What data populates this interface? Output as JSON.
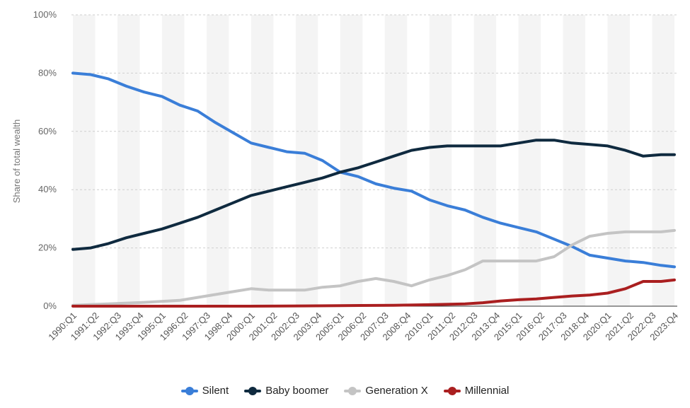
{
  "chart_data": {
    "type": "line",
    "ylabel": "Share of total wealth",
    "xlabel": "",
    "ylim": [
      0,
      100
    ],
    "y_ticks": [
      "0%",
      "20%",
      "40%",
      "60%",
      "80%",
      "100%"
    ],
    "grid": "horizontal dashed, alternating shaded bands",
    "legend_position": "bottom",
    "x_tick_labels": [
      "1990:Q1",
      "1991:Q2",
      "1992:Q3",
      "1993:Q4",
      "1995:Q1",
      "1996:Q2",
      "1997:Q3",
      "1998:Q4",
      "2000:Q1",
      "2001:Q2",
      "2002:Q3",
      "2003:Q4",
      "2005:Q1",
      "2006:Q2",
      "2007:Q3",
      "2008:Q4",
      "2010:Q1",
      "2011:Q2",
      "2012:Q3",
      "2013:Q4",
      "2015:Q1",
      "2016:Q2",
      "2017:Q3",
      "2018:Q4",
      "2020:Q1",
      "2021:Q2",
      "2022:Q3",
      "2023:Q4"
    ],
    "x_start": "1990:Q1",
    "x_end": "2023:Q4",
    "series": [
      {
        "name": "Silent",
        "color": "#3a7ed8",
        "points": [
          [
            "1990:Q1",
            80
          ],
          [
            "1991:Q1",
            79.5
          ],
          [
            "1992:Q1",
            78
          ],
          [
            "1993:Q1",
            75.5
          ],
          [
            "1994:Q1",
            73.5
          ],
          [
            "1995:Q1",
            72
          ],
          [
            "1996:Q1",
            69
          ],
          [
            "1997:Q1",
            67
          ],
          [
            "1998:Q1",
            63
          ],
          [
            "1999:Q1",
            59.5
          ],
          [
            "2000:Q1",
            56
          ],
          [
            "2001:Q1",
            54.5
          ],
          [
            "2002:Q1",
            53
          ],
          [
            "2003:Q1",
            52.5
          ],
          [
            "2004:Q1",
            50
          ],
          [
            "2005:Q1",
            46
          ],
          [
            "2006:Q1",
            44.5
          ],
          [
            "2007:Q1",
            42
          ],
          [
            "2008:Q1",
            40.5
          ],
          [
            "2009:Q1",
            39.5
          ],
          [
            "2010:Q1",
            36.5
          ],
          [
            "2011:Q1",
            34.5
          ],
          [
            "2012:Q1",
            33
          ],
          [
            "2013:Q1",
            30.5
          ],
          [
            "2014:Q1",
            28.5
          ],
          [
            "2015:Q1",
            27
          ],
          [
            "2016:Q1",
            25.5
          ],
          [
            "2017:Q1",
            23
          ],
          [
            "2018:Q1",
            20.5
          ],
          [
            "2019:Q1",
            17.5
          ],
          [
            "2020:Q1",
            16.5
          ],
          [
            "2021:Q1",
            15.5
          ],
          [
            "2022:Q1",
            15
          ],
          [
            "2023:Q1",
            14
          ],
          [
            "2023:Q4",
            13.5
          ]
        ]
      },
      {
        "name": "Baby boomer",
        "color": "#0f2a3f",
        "points": [
          [
            "1990:Q1",
            19.5
          ],
          [
            "1991:Q1",
            20
          ],
          [
            "1992:Q1",
            21.5
          ],
          [
            "1993:Q1",
            23.5
          ],
          [
            "1994:Q1",
            25
          ],
          [
            "1995:Q1",
            26.5
          ],
          [
            "1996:Q1",
            28.5
          ],
          [
            "1997:Q1",
            30.5
          ],
          [
            "1998:Q1",
            33
          ],
          [
            "1999:Q1",
            35.5
          ],
          [
            "2000:Q1",
            38
          ],
          [
            "2001:Q1",
            39.5
          ],
          [
            "2002:Q1",
            41
          ],
          [
            "2003:Q1",
            42.5
          ],
          [
            "2004:Q1",
            44
          ],
          [
            "2005:Q1",
            46
          ],
          [
            "2006:Q1",
            47.5
          ],
          [
            "2007:Q1",
            49.5
          ],
          [
            "2008:Q1",
            51.5
          ],
          [
            "2009:Q1",
            53.5
          ],
          [
            "2010:Q1",
            54.5
          ],
          [
            "2011:Q1",
            55
          ],
          [
            "2012:Q1",
            55
          ],
          [
            "2013:Q1",
            55
          ],
          [
            "2014:Q1",
            55
          ],
          [
            "2015:Q1",
            56
          ],
          [
            "2016:Q1",
            57
          ],
          [
            "2017:Q1",
            57
          ],
          [
            "2018:Q1",
            56
          ],
          [
            "2019:Q1",
            55.5
          ],
          [
            "2020:Q1",
            55
          ],
          [
            "2021:Q1",
            53.5
          ],
          [
            "2022:Q1",
            51.5
          ],
          [
            "2023:Q1",
            52
          ],
          [
            "2023:Q4",
            52
          ]
        ]
      },
      {
        "name": "Generation X",
        "color": "#c4c4c4",
        "points": [
          [
            "1990:Q1",
            0.3
          ],
          [
            "1992:Q1",
            0.8
          ],
          [
            "1994:Q1",
            1.3
          ],
          [
            "1996:Q1",
            2
          ],
          [
            "1997:Q1",
            3
          ],
          [
            "1998:Q1",
            4
          ],
          [
            "1999:Q1",
            5
          ],
          [
            "2000:Q1",
            6
          ],
          [
            "2001:Q1",
            5.5
          ],
          [
            "2002:Q1",
            5.5
          ],
          [
            "2003:Q1",
            5.5
          ],
          [
            "2004:Q1",
            6.5
          ],
          [
            "2005:Q1",
            7
          ],
          [
            "2006:Q1",
            8.5
          ],
          [
            "2007:Q1",
            9.5
          ],
          [
            "2008:Q1",
            8.5
          ],
          [
            "2009:Q1",
            7
          ],
          [
            "2010:Q1",
            9
          ],
          [
            "2011:Q1",
            10.5
          ],
          [
            "2012:Q1",
            12.5
          ],
          [
            "2013:Q1",
            15.5
          ],
          [
            "2014:Q1",
            15.5
          ],
          [
            "2015:Q1",
            15.5
          ],
          [
            "2016:Q1",
            15.5
          ],
          [
            "2017:Q1",
            17
          ],
          [
            "2018:Q1",
            21
          ],
          [
            "2019:Q1",
            24
          ],
          [
            "2020:Q1",
            25
          ],
          [
            "2021:Q1",
            25.5
          ],
          [
            "2022:Q1",
            25.5
          ],
          [
            "2023:Q1",
            25.5
          ],
          [
            "2023:Q4",
            26
          ]
        ]
      },
      {
        "name": "Millennial",
        "color": "#aa1f20",
        "points": [
          [
            "1990:Q1",
            0
          ],
          [
            "1995:Q1",
            0
          ],
          [
            "2000:Q1",
            0
          ],
          [
            "2003:Q1",
            0.1
          ],
          [
            "2005:Q1",
            0.2
          ],
          [
            "2008:Q1",
            0.3
          ],
          [
            "2010:Q1",
            0.5
          ],
          [
            "2012:Q1",
            0.8
          ],
          [
            "2013:Q1",
            1.2
          ],
          [
            "2014:Q1",
            1.8
          ],
          [
            "2015:Q1",
            2.2
          ],
          [
            "2016:Q1",
            2.5
          ],
          [
            "2017:Q1",
            3
          ],
          [
            "2018:Q1",
            3.5
          ],
          [
            "2019:Q1",
            3.8
          ],
          [
            "2020:Q1",
            4.5
          ],
          [
            "2021:Q1",
            6
          ],
          [
            "2022:Q1",
            8.5
          ],
          [
            "2023:Q1",
            8.5
          ],
          [
            "2023:Q4",
            9
          ]
        ]
      }
    ]
  }
}
